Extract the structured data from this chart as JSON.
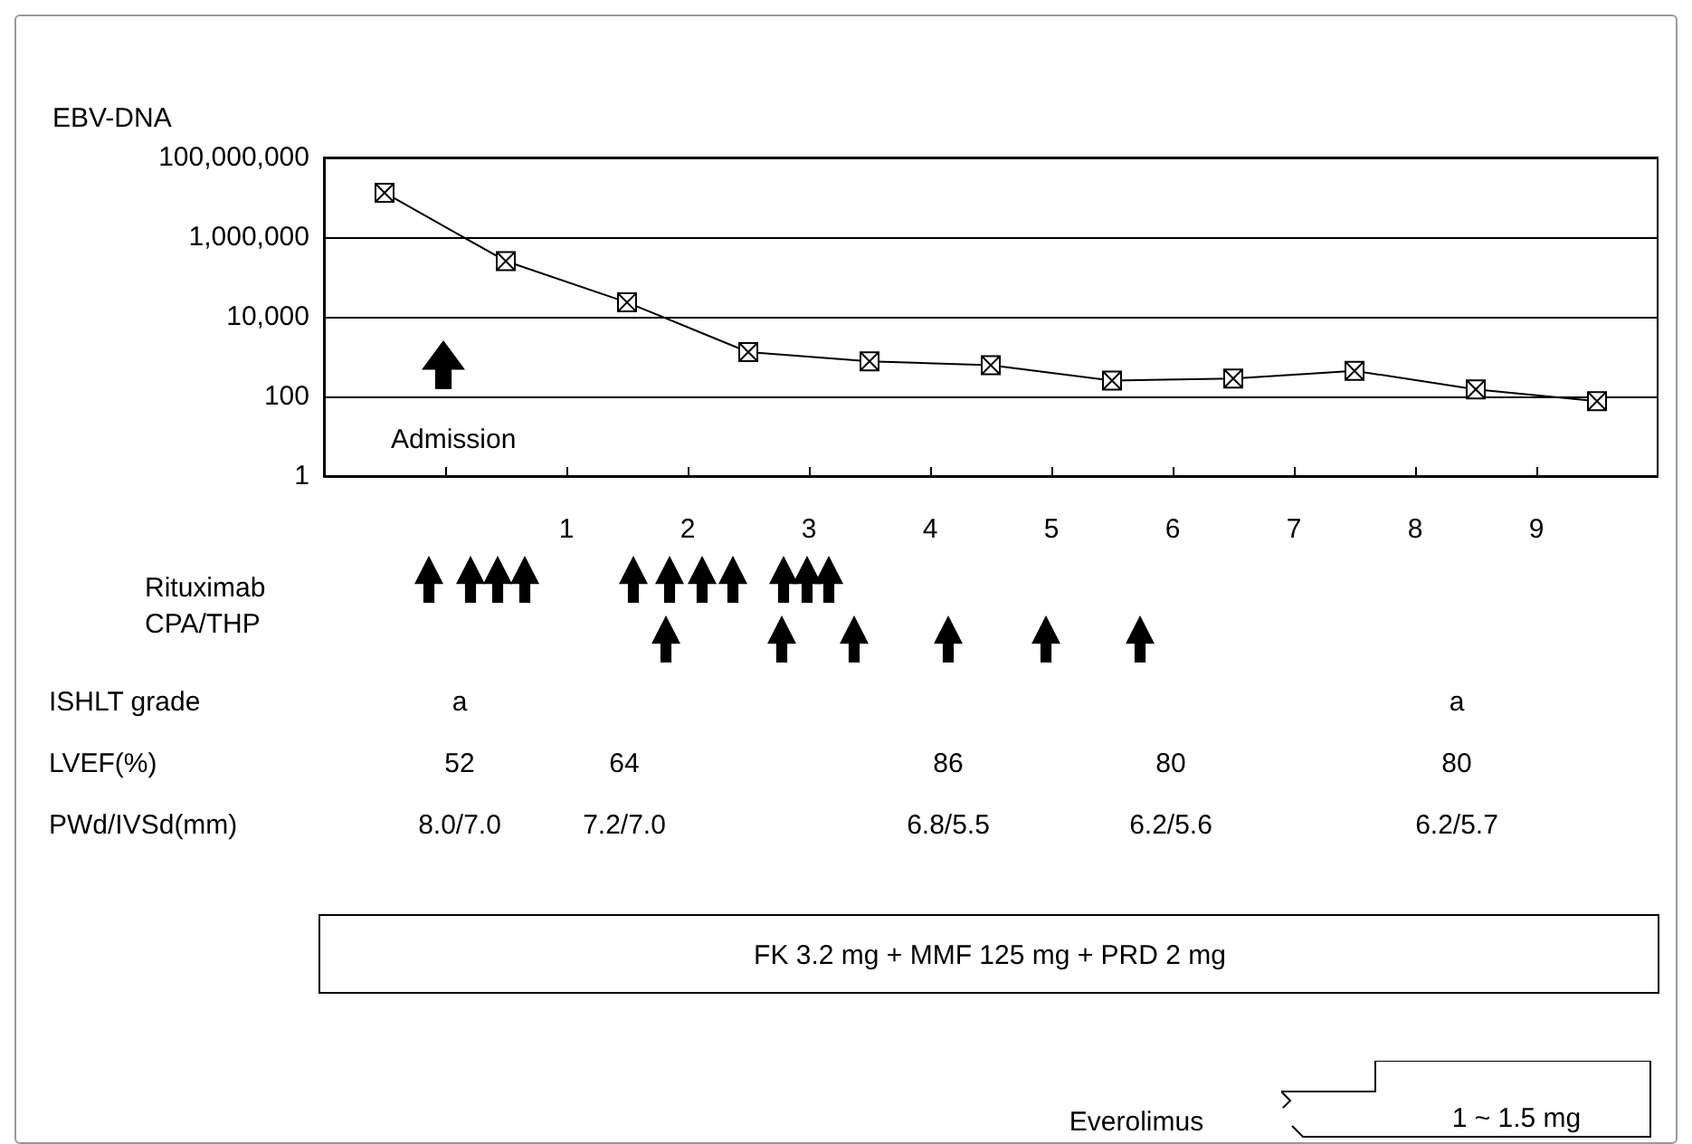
{
  "chart_data": {
    "type": "line",
    "ylabel": "EBV-DNA",
    "x": [
      -0.5,
      0.5,
      1.5,
      2.5,
      3.5,
      4.5,
      5.5,
      6.5,
      7.5,
      8.5,
      9.5
    ],
    "series": [
      {
        "color": "#000000",
        "values": [
          13000000,
          250000,
          23000,
          1300,
          760,
          610,
          250,
          280,
          440,
          150,
          76
        ]
      }
    ],
    "xlim": [
      -1,
      10
    ],
    "xticks": [
      {
        "value": 0,
        "label": null
      },
      1,
      2,
      3,
      4,
      5,
      6,
      7,
      8,
      9
    ],
    "ylim": [
      1,
      100000000
    ],
    "yticks": [
      {
        "value": 1,
        "label": "1"
      },
      {
        "value": 100,
        "label": "100"
      },
      {
        "value": 10000,
        "label": "10,000"
      },
      {
        "value": 1000000,
        "label": "1,000,000"
      },
      {
        "value": 100000000,
        "label": "100,000,000"
      }
    ],
    "log": "y",
    "grid": "y",
    "marker": "cross",
    "line_style": "solid",
    "annotations": [
      "Admission",
      "Rituximab",
      "CPA/THP",
      "ISHLT grade",
      "a",
      "a",
      "LVEF(%)",
      "52",
      "64",
      "86",
      "80",
      "80",
      "PWd/IVSd(mm)",
      "8.0/7.0",
      "7.2/7.0",
      "6.8/5.5",
      "6.2/5.6",
      "6.2/5.7",
      "FK 3.2 mg + MMF 125 mg + PRD 2 mg",
      "Everolimus",
      "1 ~ 1.5 mg"
    ]
  }
}
